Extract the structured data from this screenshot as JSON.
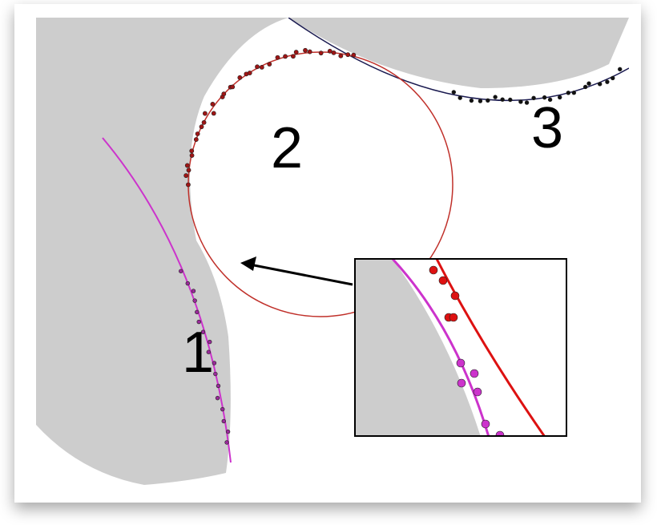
{
  "labels": [
    "1",
    "2",
    "3"
  ]
}
